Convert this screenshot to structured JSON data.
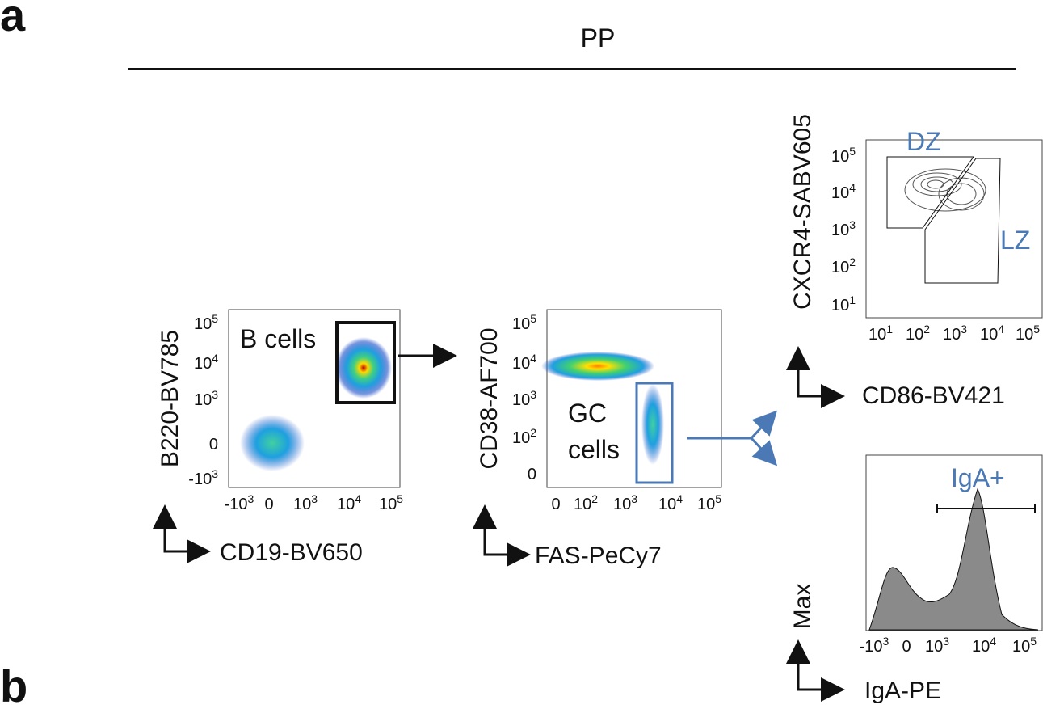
{
  "panel_labels": [
    "a",
    "b"
  ],
  "header": "PP",
  "plots": [
    {
      "y_label": "B220-BV785",
      "x_label": "CD19-BV650",
      "gates": [
        "B cells"
      ],
      "yticks": [
        {
          "base": "10",
          "exp": "5"
        },
        {
          "base": "10",
          "exp": "4"
        },
        {
          "base": "10",
          "exp": "3"
        },
        {
          "base": "0"
        },
        {
          "base": "-10",
          "exp": "3"
        }
      ],
      "xticks": [
        {
          "base": "-10",
          "exp": "3"
        },
        {
          "base": "0"
        },
        {
          "base": "10",
          "exp": "3"
        },
        {
          "base": "10",
          "exp": "4"
        },
        {
          "base": "10",
          "exp": "5"
        }
      ]
    },
    {
      "y_label": "CD38-AF700",
      "x_label": "FAS-PeCy7",
      "gates": [
        "GC",
        "cells"
      ],
      "yticks": [
        {
          "base": "10",
          "exp": "5"
        },
        {
          "base": "10",
          "exp": "4"
        },
        {
          "base": "10",
          "exp": "3"
        },
        {
          "base": "10",
          "exp": "2"
        },
        {
          "base": "0"
        }
      ],
      "xticks": [
        {
          "base": "0"
        },
        {
          "base": "10",
          "exp": "2"
        },
        {
          "base": "10",
          "exp": "3"
        },
        {
          "base": "10",
          "exp": "4"
        },
        {
          "base": "10",
          "exp": "5"
        }
      ]
    },
    {
      "y_label": "CXCR4-SABV605",
      "x_label": "CD86-BV421",
      "gates": [
        "DZ",
        "LZ"
      ],
      "yticks": [
        {
          "base": "10",
          "exp": "5"
        },
        {
          "base": "10",
          "exp": "4"
        },
        {
          "base": "10",
          "exp": "3"
        },
        {
          "base": "10",
          "exp": "2"
        },
        {
          "base": "10",
          "exp": "1"
        }
      ],
      "xticks": [
        {
          "base": "10",
          "exp": "1"
        },
        {
          "base": "10",
          "exp": "2"
        },
        {
          "base": "10",
          "exp": "3"
        },
        {
          "base": "10",
          "exp": "4"
        },
        {
          "base": "10",
          "exp": "5"
        }
      ]
    },
    {
      "y_label": "Max",
      "x_label": "IgA-PE",
      "gates": [
        "IgA+"
      ],
      "yticks": [],
      "xticks": [
        {
          "base": "-10",
          "exp": "3"
        },
        {
          "base": "0"
        },
        {
          "base": "10",
          "exp": "3"
        },
        {
          "base": "10",
          "exp": "4"
        },
        {
          "base": "10",
          "exp": "5"
        }
      ]
    }
  ]
}
